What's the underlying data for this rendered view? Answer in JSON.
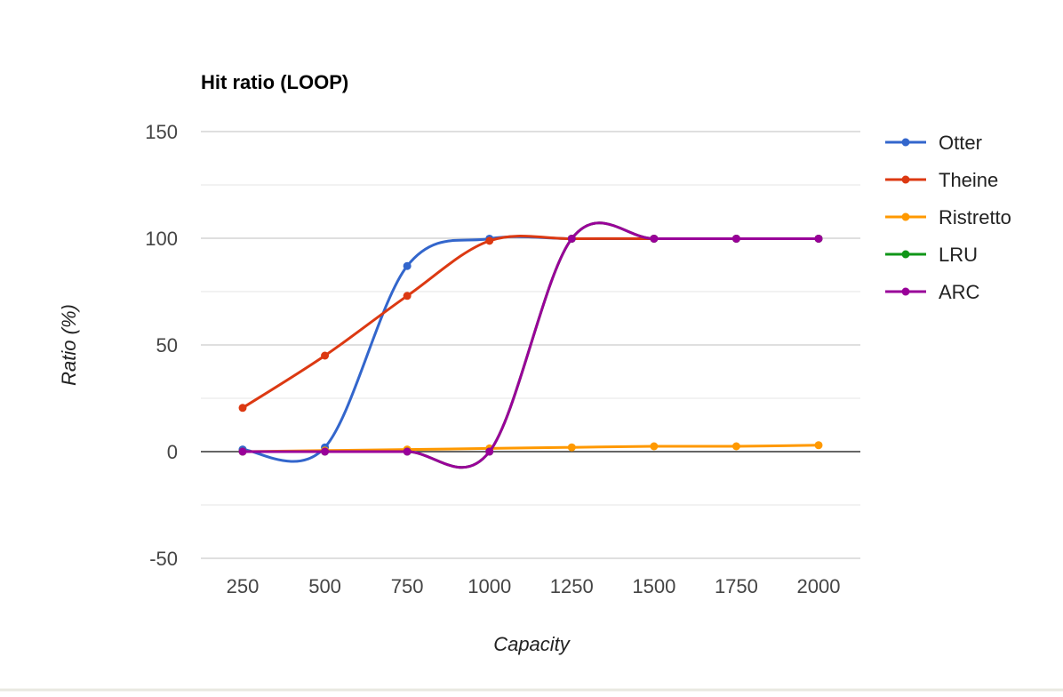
{
  "chart_data": {
    "type": "line",
    "title": "Hit ratio (LOOP)",
    "xlabel": "Capacity",
    "ylabel": "Ratio (%)",
    "x": [
      250,
      500,
      750,
      1000,
      1250,
      1500,
      1750,
      2000
    ],
    "x_tick_labels": [
      "250",
      "500",
      "750",
      "1000",
      "1250",
      "1500",
      "1750",
      "2000"
    ],
    "y_tick_labels": [
      "150",
      "100",
      "50",
      "0",
      "-50"
    ],
    "ylim": [
      -50,
      150
    ],
    "y_ticks": [
      150,
      100,
      50,
      0,
      -50
    ],
    "y_gridlines": [
      150,
      125,
      100,
      75,
      50,
      25,
      0,
      -25,
      -50
    ],
    "grid": true,
    "smooth": true,
    "legend_position": "right",
    "series": [
      {
        "name": "Otter",
        "color": "#3366cc",
        "values": [
          1.0,
          2.0,
          87.0,
          99.8,
          99.8,
          99.8,
          99.8,
          99.8
        ]
      },
      {
        "name": "Theine",
        "color": "#dc3912",
        "values": [
          20.5,
          45.0,
          73.0,
          98.8,
          99.8,
          99.8,
          99.8,
          99.8
        ]
      },
      {
        "name": "Ristretto",
        "color": "#ff9900",
        "values": [
          0.0,
          0.5,
          1.0,
          1.5,
          2.0,
          2.5,
          2.5,
          3.0
        ]
      },
      {
        "name": "LRU",
        "color": "#109618",
        "values": [
          0.0,
          0.0,
          0.0,
          0.0,
          99.8,
          99.8,
          99.8,
          99.8
        ]
      },
      {
        "name": "ARC",
        "color": "#990099",
        "values": [
          0.0,
          0.0,
          0.0,
          0.0,
          99.8,
          99.8,
          99.8,
          99.8
        ]
      }
    ]
  }
}
